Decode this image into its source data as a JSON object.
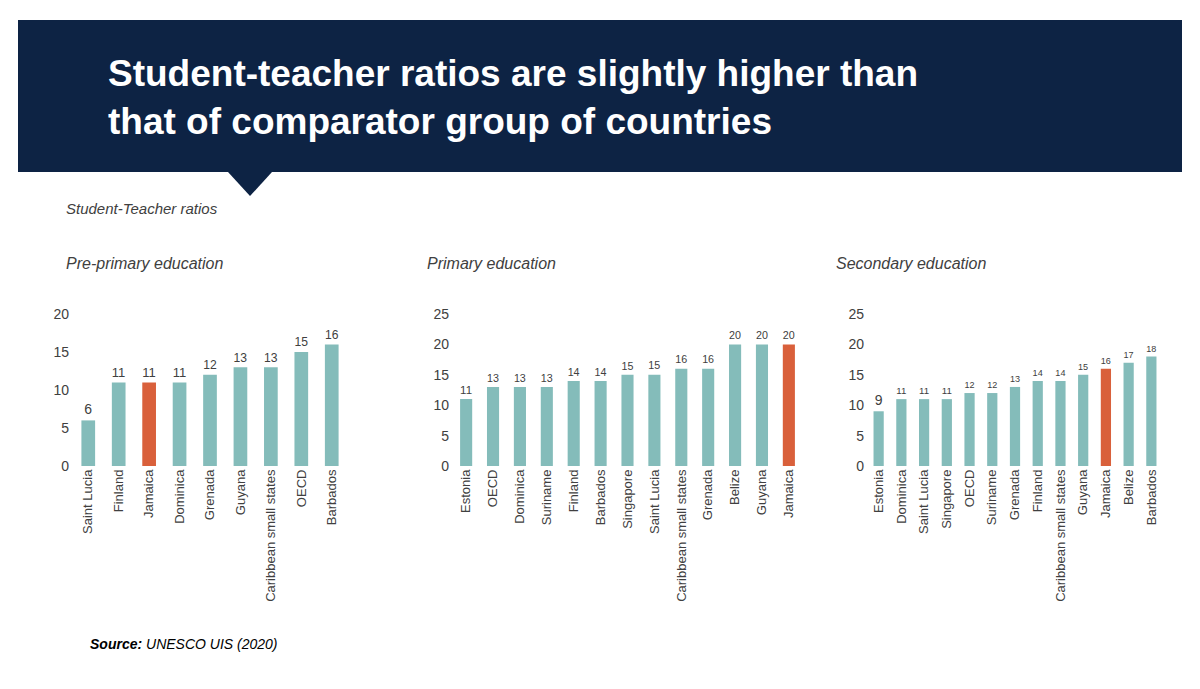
{
  "title_lines": [
    "Student-teacher ratios are slightly higher than",
    "that of comparator group of countries"
  ],
  "subtitle": "Student-Teacher ratios",
  "source_label": "Source:",
  "source_text": "UNESCO UIS (2020)",
  "chart_data": [
    {
      "type": "bar",
      "title": "Pre-primary education",
      "categories": [
        "Saint Lucia",
        "Finland",
        "Jamaica",
        "Dominica",
        "Grenada",
        "Guyana",
        "Caribbean small states",
        "OECD",
        "Barbados"
      ],
      "values": [
        6,
        11,
        11,
        11,
        12,
        13,
        13,
        15,
        16
      ],
      "colors": [
        "#84bcba",
        "#84bcba",
        "#d9603b",
        "#84bcba",
        "#84bcba",
        "#84bcba",
        "#84bcba",
        "#84bcba",
        "#84bcba"
      ],
      "ylim": [
        0,
        20
      ],
      "yticks": [
        0,
        5,
        10,
        15,
        20
      ],
      "grid": false,
      "data_labels": true
    },
    {
      "type": "bar",
      "title": "Primary education",
      "categories": [
        "Estonia",
        "OECD",
        "Dominica",
        "Suriname",
        "Finland",
        "Barbados",
        "Singapore",
        "Saint Lucia",
        "Caribbean small states",
        "Grenada",
        "Belize",
        "Guyana",
        "Jamaica"
      ],
      "values": [
        11,
        13,
        13,
        13,
        14,
        14,
        15,
        15,
        16,
        16,
        20,
        20,
        20
      ],
      "colors": [
        "#84bcba",
        "#84bcba",
        "#84bcba",
        "#84bcba",
        "#84bcba",
        "#84bcba",
        "#84bcba",
        "#84bcba",
        "#84bcba",
        "#84bcba",
        "#84bcba",
        "#84bcba",
        "#d9603b"
      ],
      "ylim": [
        0,
        25
      ],
      "yticks": [
        0,
        5,
        10,
        15,
        20,
        25
      ],
      "grid": false,
      "data_labels": true
    },
    {
      "type": "bar",
      "title": "Secondary education",
      "categories": [
        "Estonia",
        "Dominica",
        "Saint Lucia",
        "Singapore",
        "OECD",
        "Suriname",
        "Grenada",
        "Finland",
        "Caribbean small states",
        "Guyana",
        "Jamaica",
        "Belize",
        "Barbados"
      ],
      "values": [
        9,
        11,
        11,
        11,
        12,
        12,
        13,
        14,
        14,
        15,
        16,
        17,
        18
      ],
      "colors": [
        "#84bcba",
        "#84bcba",
        "#84bcba",
        "#84bcba",
        "#84bcba",
        "#84bcba",
        "#84bcba",
        "#84bcba",
        "#84bcba",
        "#84bcba",
        "#d9603b",
        "#84bcba",
        "#84bcba"
      ],
      "ylim": [
        0,
        25
      ],
      "yticks": [
        0,
        5,
        10,
        15,
        20,
        25
      ],
      "grid": false,
      "data_labels": true
    }
  ]
}
